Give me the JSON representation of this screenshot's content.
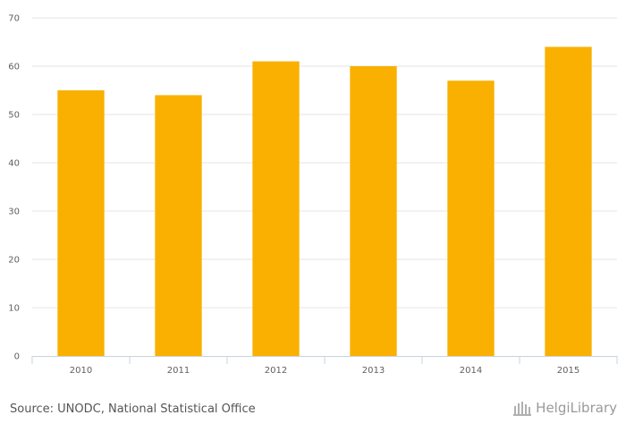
{
  "chart_data": {
    "type": "bar",
    "categories": [
      "2010",
      "2011",
      "2012",
      "2013",
      "2014",
      "2015"
    ],
    "values": [
      55,
      54,
      61,
      60,
      57,
      64
    ],
    "ylim": [
      0,
      70
    ],
    "yticks": [
      0,
      10,
      20,
      30,
      40,
      50,
      60,
      70
    ],
    "bar_color": "#f9b000",
    "grid": true,
    "title": "",
    "xlabel": "",
    "ylabel": ""
  },
  "footer": {
    "source": "Source: UNODC, National Statistical Office",
    "logo_text": "HelgiLibrary"
  }
}
